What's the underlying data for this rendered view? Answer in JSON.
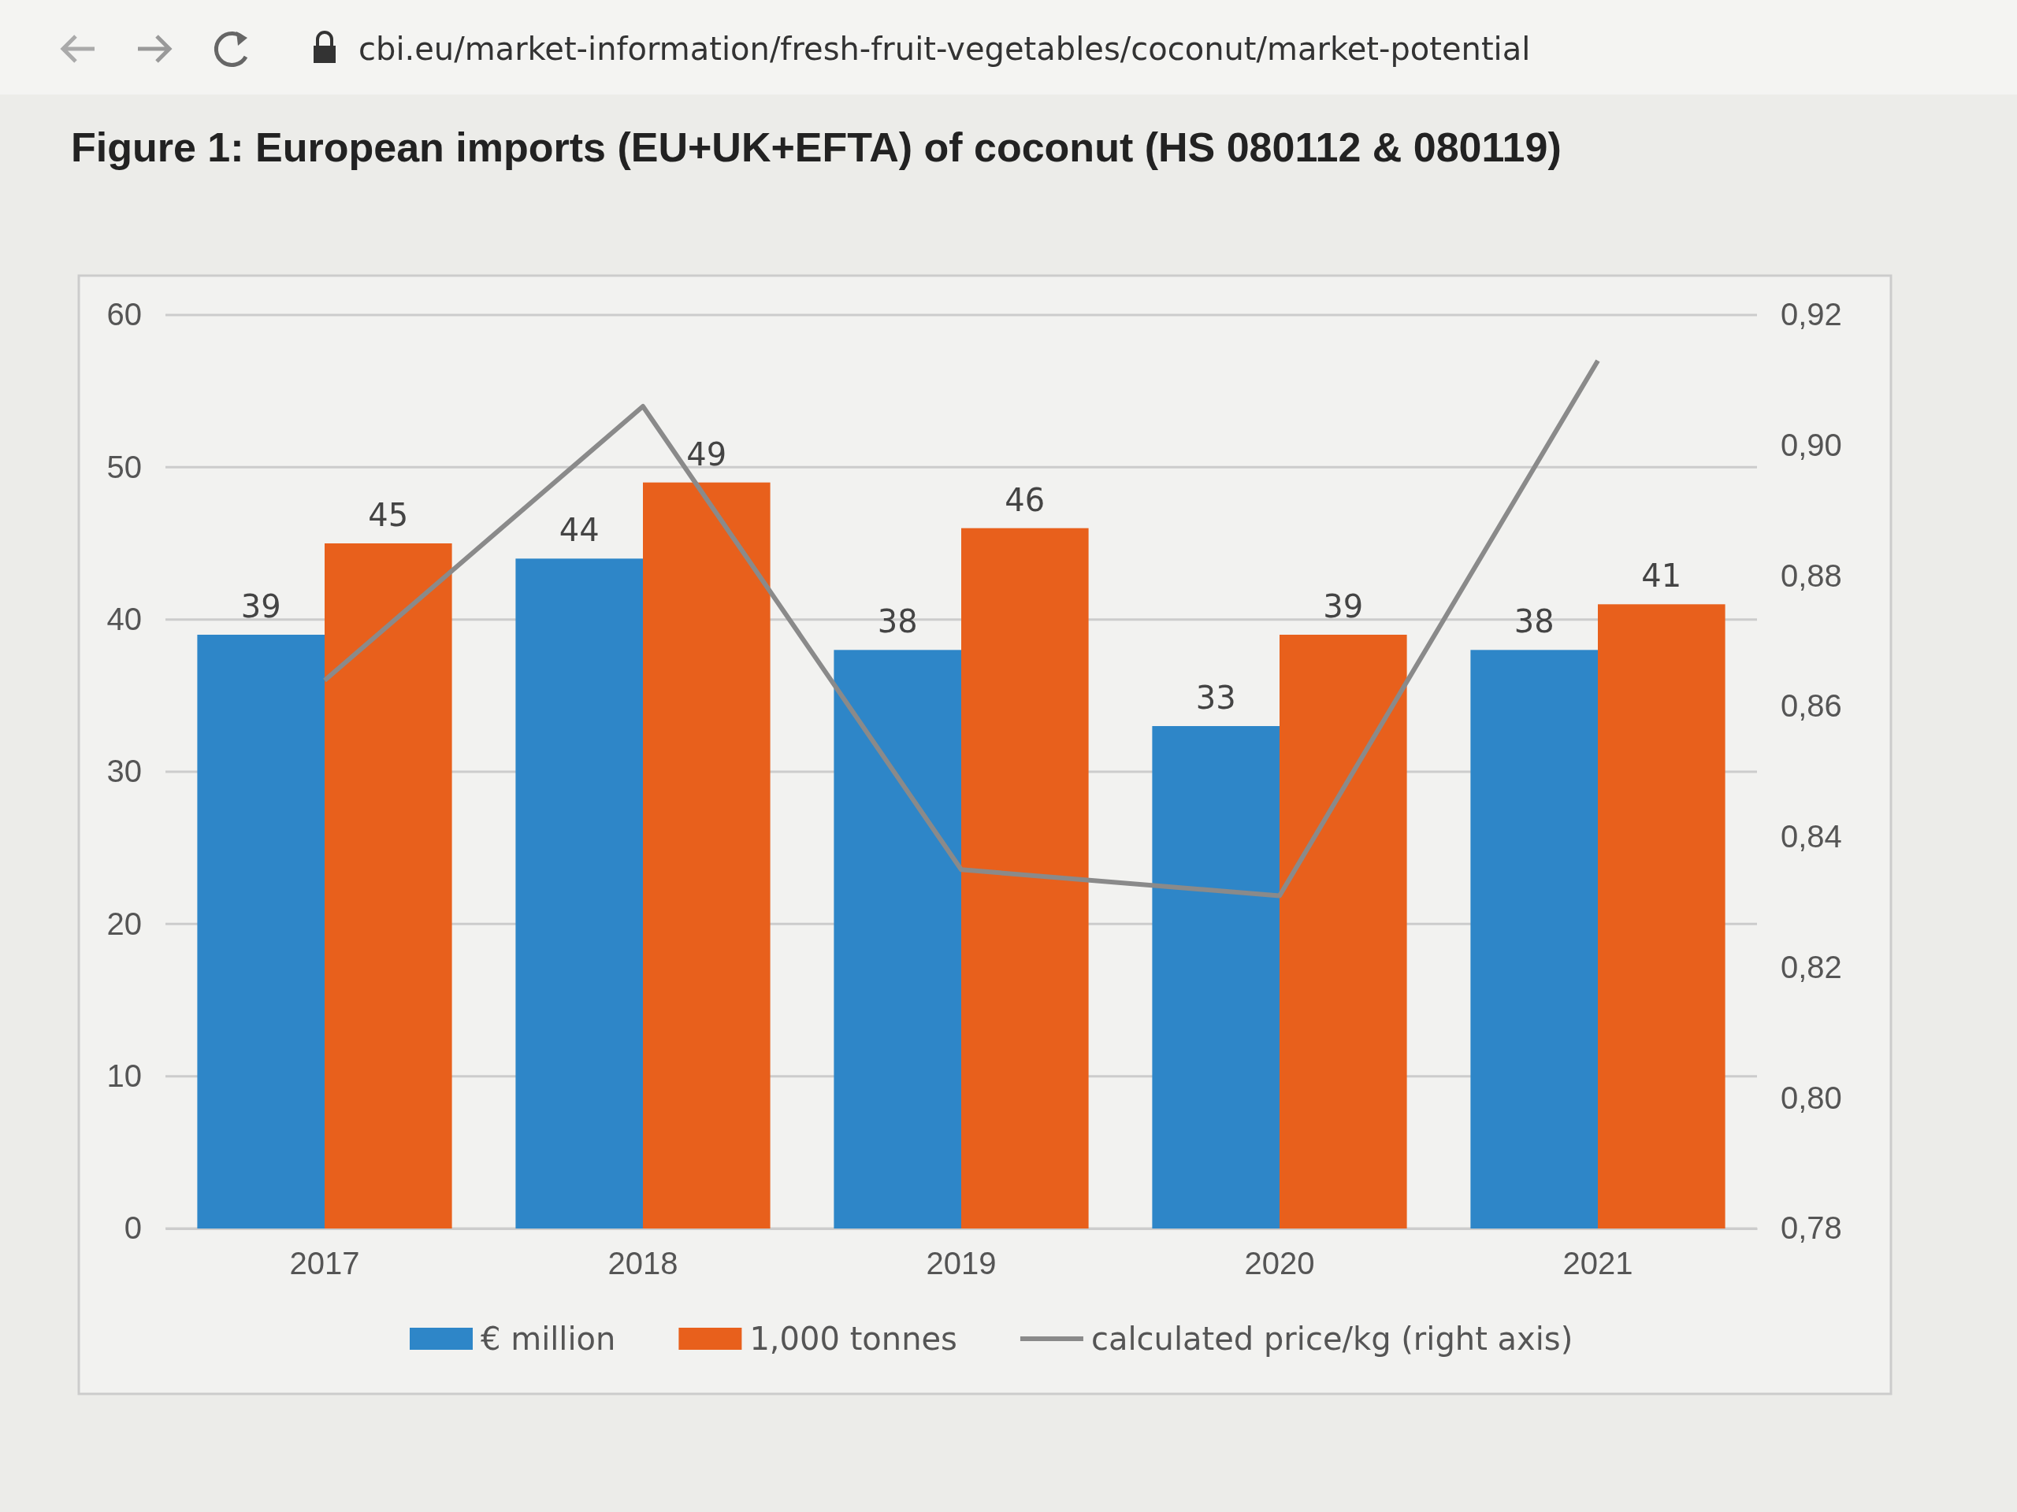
{
  "chart_data": {
    "type": "bar",
    "title": "Figure 1: European imports (EU+UK+EFTA) of coconut (HS 080112 & 080119)",
    "annotations": [
      "cbi.eu/market-information/fresh-fruit-vegetables/coconut/market-potential"
    ],
    "categories": [
      "2017",
      "2018",
      "2019",
      "2020",
      "2021"
    ],
    "series": [
      {
        "name": "€ million",
        "color": "#2e86c8",
        "values": [
          39,
          44,
          38,
          33,
          38
        ],
        "value_labels": [
          "39",
          "44",
          "38",
          "33",
          "38"
        ]
      },
      {
        "name": "1,000 tonnes",
        "color": "#e8601c",
        "values": [
          45,
          49,
          46,
          39,
          41
        ],
        "value_labels": [
          "45",
          "49",
          "46",
          "39",
          "41"
        ]
      },
      {
        "name": "calculated price/kg (right axis)",
        "type": "line",
        "axis": "y2",
        "color": "#8a8a8a",
        "values": [
          0.864,
          0.906,
          0.835,
          0.831,
          0.913
        ]
      }
    ],
    "ylim": [
      0,
      60
    ],
    "yticks": [
      0,
      10,
      20,
      30,
      40,
      50,
      60
    ],
    "y2lim": [
      0.78,
      0.92
    ],
    "y2ticks": [
      {
        "value": 0.78,
        "label": "0,78"
      },
      {
        "value": 0.8,
        "label": "0,80"
      },
      {
        "value": 0.82,
        "label": "0,82"
      },
      {
        "value": 0.84,
        "label": "0,84"
      },
      {
        "value": 0.86,
        "label": "0,86"
      },
      {
        "value": 0.88,
        "label": "0,88"
      },
      {
        "value": 0.9,
        "label": "0,90"
      },
      {
        "value": 0.92,
        "label": "0,92"
      }
    ],
    "grid": "y",
    "legend": "bottom",
    "line_style": "solid",
    "marker": "none"
  }
}
